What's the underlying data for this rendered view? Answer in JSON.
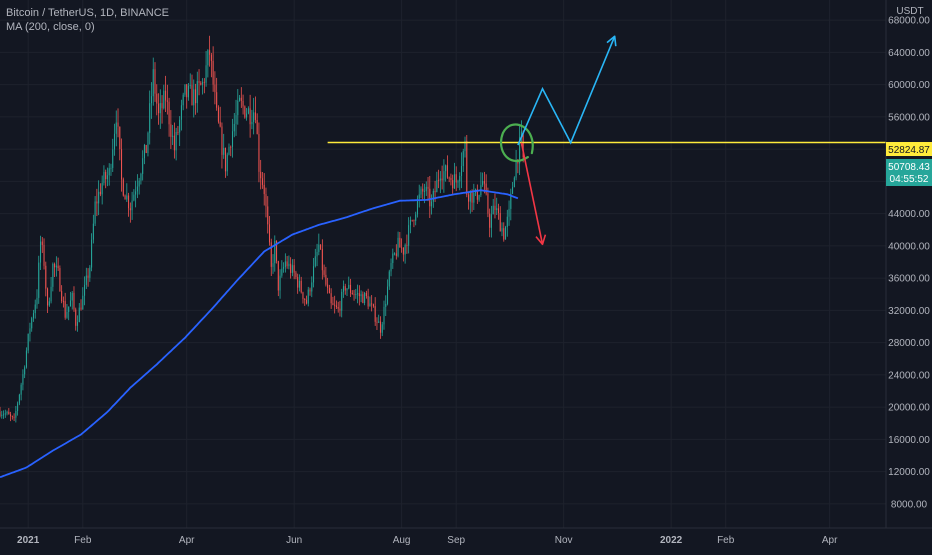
{
  "legend": {
    "symbol_line": "Bitcoin / TetherUS, 1D, BINANCE",
    "indicator_line": "MA (200, close, 0)"
  },
  "price_axis": {
    "unit": "USDT",
    "current_price": "50708.43",
    "countdown": "04:55:52",
    "level_price": "52824.87"
  },
  "colors": {
    "background": "#131722",
    "up": "#26a69a",
    "down": "#ef5350",
    "ma": "#2962ff",
    "level": "#ffeb3b",
    "projection_up": "#29b6f6",
    "projection_down": "#f23645",
    "circle": "#4caf50"
  },
  "chart_data": {
    "type": "candlestick",
    "title": "Bitcoin / TetherUS, 1D, BINANCE",
    "ylim": [
      5000,
      70500
    ],
    "y_ticks": [
      8000,
      12000,
      16000,
      20000,
      24000,
      28000,
      32000,
      36000,
      40000,
      44000,
      48000,
      52000,
      56000,
      60000,
      64000,
      68000
    ],
    "x_range": [
      "2020-12-16",
      "2022-05-03"
    ],
    "x_ticks": [
      {
        "label": "2021",
        "date": "2021-01-01"
      },
      {
        "label": "Feb",
        "date": "2021-02-01"
      },
      {
        "label": "Apr",
        "date": "2021-04-01"
      },
      {
        "label": "Jun",
        "date": "2021-06-01"
      },
      {
        "label": "Aug",
        "date": "2021-08-01"
      },
      {
        "label": "Sep",
        "date": "2021-09-01"
      },
      {
        "label": "Nov",
        "date": "2021-11-01"
      },
      {
        "label": "2022",
        "date": "2022-01-01"
      },
      {
        "label": "Feb",
        "date": "2022-02-01"
      },
      {
        "label": "Apr",
        "date": "2022-04-01"
      }
    ],
    "price_anchors": [
      [
        "2020-12-16",
        19400
      ],
      [
        "2020-12-20",
        19100
      ],
      [
        "2020-12-24",
        18300
      ],
      [
        "2020-12-29",
        24000
      ],
      [
        "2021-01-02",
        30000
      ],
      [
        "2021-01-06",
        34000
      ],
      [
        "2021-01-08",
        40500
      ],
      [
        "2021-01-10",
        38000
      ],
      [
        "2021-01-12",
        32000
      ],
      [
        "2021-01-15",
        37500
      ],
      [
        "2021-01-18",
        36500
      ],
      [
        "2021-01-22",
        31500
      ],
      [
        "2021-01-26",
        33500
      ],
      [
        "2021-01-28",
        30500
      ],
      [
        "2021-02-01",
        33500
      ],
      [
        "2021-02-05",
        37500
      ],
      [
        "2021-02-08",
        45000
      ],
      [
        "2021-02-12",
        47800
      ],
      [
        "2021-02-16",
        49000
      ],
      [
        "2021-02-20",
        56500
      ],
      [
        "2021-02-23",
        48000
      ],
      [
        "2021-02-26",
        46000
      ],
      [
        "2021-02-28",
        45000
      ],
      [
        "2021-03-05",
        49000
      ],
      [
        "2021-03-09",
        52000
      ],
      [
        "2021-03-13",
        61000
      ],
      [
        "2021-03-16",
        56000
      ],
      [
        "2021-03-20",
        58500
      ],
      [
        "2021-03-25",
        52000
      ],
      [
        "2021-03-31",
        58800
      ],
      [
        "2021-04-05",
        58500
      ],
      [
        "2021-04-10",
        60000
      ],
      [
        "2021-04-14",
        64000
      ],
      [
        "2021-04-18",
        56000
      ],
      [
        "2021-04-23",
        50000
      ],
      [
        "2021-04-26",
        53500
      ],
      [
        "2021-05-01",
        57500
      ],
      [
        "2021-05-07",
        56500
      ],
      [
        "2021-05-10",
        57000
      ],
      [
        "2021-05-12",
        50000
      ],
      [
        "2021-05-15",
        47000
      ],
      [
        "2021-05-19",
        37000
      ],
      [
        "2021-05-21",
        40000
      ],
      [
        "2021-05-23",
        35000
      ],
      [
        "2021-05-27",
        38000
      ],
      [
        "2021-06-01",
        36500
      ],
      [
        "2021-06-08",
        33000
      ],
      [
        "2021-06-12",
        37000
      ],
      [
        "2021-06-15",
        40000
      ],
      [
        "2021-06-18",
        36000
      ],
      [
        "2021-06-22",
        32500
      ],
      [
        "2021-06-26",
        32000
      ],
      [
        "2021-06-30",
        35000
      ],
      [
        "2021-07-06",
        34000
      ],
      [
        "2021-07-12",
        33500
      ],
      [
        "2021-07-16",
        31800
      ],
      [
        "2021-07-20",
        29800
      ],
      [
        "2021-07-22",
        32000
      ],
      [
        "2021-07-26",
        37500
      ],
      [
        "2021-07-30",
        40000
      ],
      [
        "2021-08-02",
        39500
      ],
      [
        "2021-08-06",
        42500
      ],
      [
        "2021-08-10",
        45500
      ],
      [
        "2021-08-14",
        47000
      ],
      [
        "2021-08-18",
        45000
      ],
      [
        "2021-08-23",
        49500
      ],
      [
        "2021-08-27",
        48800
      ],
      [
        "2021-09-01",
        48000
      ],
      [
        "2021-09-06",
        52500
      ],
      [
        "2021-09-07",
        46800
      ],
      [
        "2021-09-12",
        46000
      ],
      [
        "2021-09-16",
        48000
      ],
      [
        "2021-09-20",
        43000
      ],
      [
        "2021-09-23",
        44800
      ],
      [
        "2021-09-28",
        41500
      ],
      [
        "2021-10-01",
        43800
      ],
      [
        "2021-10-04",
        49500
      ],
      [
        "2021-10-06",
        51500
      ],
      [
        "2021-10-08",
        53000
      ],
      [
        "2021-10-09",
        50700
      ]
    ],
    "ma_200": [
      [
        "2020-12-16",
        11300
      ],
      [
        "2020-12-31",
        12500
      ],
      [
        "2021-01-15",
        14600
      ],
      [
        "2021-01-31",
        16600
      ],
      [
        "2021-02-15",
        19400
      ],
      [
        "2021-02-28",
        22400
      ],
      [
        "2021-03-15",
        25300
      ],
      [
        "2021-03-31",
        28600
      ],
      [
        "2021-04-15",
        32100
      ],
      [
        "2021-04-30",
        35800
      ],
      [
        "2021-05-15",
        39300
      ],
      [
        "2021-05-31",
        41400
      ],
      [
        "2021-06-15",
        42600
      ],
      [
        "2021-06-30",
        43500
      ],
      [
        "2021-07-15",
        44600
      ],
      [
        "2021-07-31",
        45600
      ],
      [
        "2021-08-15",
        45700
      ],
      [
        "2021-08-31",
        46400
      ],
      [
        "2021-09-15",
        46900
      ],
      [
        "2021-09-30",
        46400
      ],
      [
        "2021-10-06",
        45900
      ]
    ],
    "annotations": {
      "horizontal_level": {
        "price": 52824.87,
        "from": "2021-06-20",
        "to": "2022-05-03"
      },
      "circle": {
        "date": "2021-10-06",
        "price": 52500
      },
      "bullish_path": [
        [
          "2021-10-06",
          52500
        ],
        [
          "2021-10-20",
          59500
        ],
        [
          "2021-11-05",
          52800
        ],
        [
          "2021-11-30",
          66000
        ]
      ],
      "bearish_path": [
        [
          "2021-10-08",
          52800
        ],
        [
          "2021-10-20",
          40200
        ]
      ]
    }
  }
}
